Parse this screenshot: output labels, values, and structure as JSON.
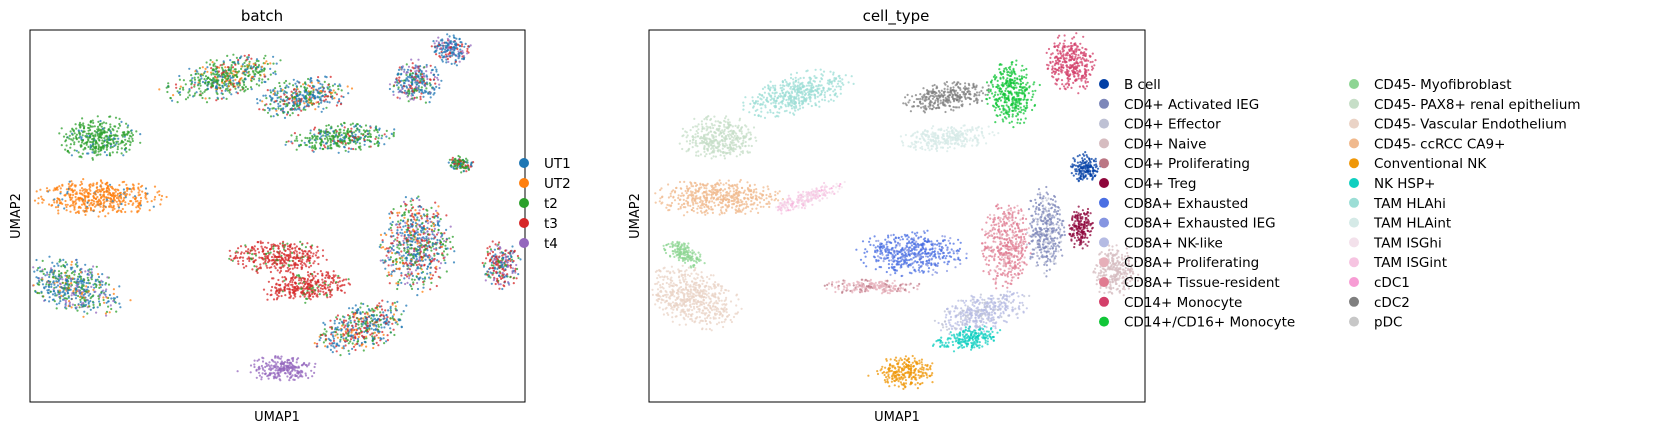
{
  "chart_data": [
    {
      "type": "scatter",
      "title": "batch",
      "xlabel": "UMAP1",
      "ylabel": "UMAP2",
      "grid": false,
      "ticks": false,
      "legend_position": "right",
      "legend": [
        {
          "label": "UT1",
          "color": "#1f77b4"
        },
        {
          "label": "UT2",
          "color": "#ff7f0e"
        },
        {
          "label": "t2",
          "color": "#2ca02c"
        },
        {
          "label": "t3",
          "color": "#d62728"
        },
        {
          "label": "t4",
          "color": "#9467bd"
        }
      ],
      "clusters": [
        {
          "name": "upper-arc",
          "x": 0.39,
          "y": 0.87,
          "rx": 0.12,
          "ry": 0.055,
          "rot": -14,
          "mix": [
            [
              "t2",
              5
            ],
            [
              "UT1",
              2
            ],
            [
              "UT2",
              1
            ],
            [
              "t3",
              1
            ]
          ]
        },
        {
          "name": "upper-mid",
          "x": 0.55,
          "y": 0.82,
          "rx": 0.1,
          "ry": 0.05,
          "rot": -10,
          "mix": [
            [
              "UT1",
              3
            ],
            [
              "t2",
              2
            ],
            [
              "UT2",
              1
            ],
            [
              "t3",
              1
            ]
          ]
        },
        {
          "name": "upper-right",
          "x": 0.78,
          "y": 0.86,
          "rx": 0.055,
          "ry": 0.06,
          "rot": 0,
          "mix": [
            [
              "UT1",
              3
            ],
            [
              "t2",
              1
            ],
            [
              "t3",
              1
            ],
            [
              "t4",
              1
            ]
          ]
        },
        {
          "name": "top-right-tip",
          "x": 0.85,
          "y": 0.95,
          "rx": 0.04,
          "ry": 0.045,
          "rot": 0,
          "mix": [
            [
              "UT1",
              3
            ],
            [
              "t4",
              1
            ],
            [
              "t3",
              1
            ]
          ]
        },
        {
          "name": "left-upper",
          "x": 0.14,
          "y": 0.71,
          "rx": 0.08,
          "ry": 0.06,
          "rot": 0,
          "mix": [
            [
              "t2",
              7
            ],
            [
              "UT1",
              1
            ]
          ]
        },
        {
          "name": "mid-band",
          "x": 0.63,
          "y": 0.71,
          "rx": 0.11,
          "ry": 0.04,
          "rot": -5,
          "mix": [
            [
              "t2",
              5
            ],
            [
              "UT1",
              2
            ],
            [
              "t3",
              1
            ]
          ]
        },
        {
          "name": "left-orange",
          "x": 0.14,
          "y": 0.55,
          "rx": 0.13,
          "ry": 0.05,
          "rot": 0,
          "mix": [
            [
              "UT2",
              9
            ],
            [
              "UT1",
              1
            ]
          ]
        },
        {
          "name": "left-lower",
          "x": 0.09,
          "y": 0.31,
          "rx": 0.1,
          "ry": 0.07,
          "rot": 20,
          "mix": [
            [
              "UT1",
              3
            ],
            [
              "t2",
              2
            ],
            [
              "UT2",
              1
            ],
            [
              "t4",
              1
            ]
          ]
        },
        {
          "name": "center-red",
          "x": 0.5,
          "y": 0.39,
          "rx": 0.1,
          "ry": 0.045,
          "rot": 0,
          "mix": [
            [
              "t3",
              9
            ],
            [
              "t2",
              1
            ]
          ]
        },
        {
          "name": "center-red-lower",
          "x": 0.56,
          "y": 0.31,
          "rx": 0.09,
          "ry": 0.045,
          "rot": -5,
          "mix": [
            [
              "t3",
              7
            ],
            [
              "t2",
              1
            ]
          ]
        },
        {
          "name": "right-mixed",
          "x": 0.78,
          "y": 0.42,
          "rx": 0.075,
          "ry": 0.13,
          "rot": 0,
          "mix": [
            [
              "UT1",
              3
            ],
            [
              "t2",
              2
            ],
            [
              "t3",
              2
            ],
            [
              "t4",
              1
            ],
            [
              "UT2",
              1
            ]
          ]
        },
        {
          "name": "far-right",
          "x": 0.95,
          "y": 0.37,
          "rx": 0.04,
          "ry": 0.065,
          "rot": 0,
          "mix": [
            [
              "t3",
              3
            ],
            [
              "t4",
              2
            ],
            [
              "UT1",
              2
            ],
            [
              "t2",
              1
            ]
          ]
        },
        {
          "name": "lower-right",
          "x": 0.67,
          "y": 0.2,
          "rx": 0.1,
          "ry": 0.06,
          "rot": -20,
          "mix": [
            [
              "UT1",
              3
            ],
            [
              "t2",
              2
            ],
            [
              "t3",
              2
            ],
            [
              "UT2",
              1
            ]
          ]
        },
        {
          "name": "bottom-purple",
          "x": 0.51,
          "y": 0.09,
          "rx": 0.07,
          "ry": 0.035,
          "rot": 0,
          "mix": [
            [
              "t4",
              9
            ]
          ]
        },
        {
          "name": "small-right",
          "x": 0.87,
          "y": 0.64,
          "rx": 0.025,
          "ry": 0.025,
          "rot": 0,
          "mix": [
            [
              "t2",
              3
            ],
            [
              "t3",
              1
            ],
            [
              "UT1",
              1
            ]
          ]
        }
      ]
    },
    {
      "type": "scatter",
      "title": "cell_type",
      "xlabel": "UMAP1",
      "ylabel": "UMAP2",
      "grid": false,
      "ticks": false,
      "legend_position": "right",
      "legend": [
        {
          "label": "B cell",
          "color": "#023fa5"
        },
        {
          "label": "CD4+ Activated IEG",
          "color": "#7d87b9"
        },
        {
          "label": "CD4+ Effector",
          "color": "#bec1d4"
        },
        {
          "label": "CD4+ Naive",
          "color": "#d6bcc0"
        },
        {
          "label": "CD4+ Proliferating",
          "color": "#bb7784"
        },
        {
          "label": "CD4+ Treg",
          "color": "#8e063b"
        },
        {
          "label": "CD8A+ Exhausted",
          "color": "#4a6fe3"
        },
        {
          "label": "CD8A+ Exhausted IEG",
          "color": "#8595e1"
        },
        {
          "label": "CD8A+ NK-like",
          "color": "#b5bbe3"
        },
        {
          "label": "CD8A+ Proliferating",
          "color": "#e6afb9"
        },
        {
          "label": "CD8A+ Tissue-resident",
          "color": "#e07b91"
        },
        {
          "label": "CD14+ Monocyte",
          "color": "#d33f6a"
        },
        {
          "label": "CD14+/CD16+ Monocyte",
          "color": "#11c638"
        },
        {
          "label": "CD45- Myofibroblast",
          "color": "#8dd593"
        },
        {
          "label": "CD45- PAX8+ renal epithelium",
          "color": "#c6dec7"
        },
        {
          "label": "CD45- Vascular Endothelium",
          "color": "#ead3c6"
        },
        {
          "label": "CD45- ccRCC CA9+",
          "color": "#f0b98d"
        },
        {
          "label": "Conventional NK",
          "color": "#ef9708"
        },
        {
          "label": "NK HSP+",
          "color": "#0fcfc0"
        },
        {
          "label": "TAM HLAhi",
          "color": "#9cded6"
        },
        {
          "label": "TAM HLAint",
          "color": "#d5eae7"
        },
        {
          "label": "TAM ISGhi",
          "color": "#f3e1eb"
        },
        {
          "label": "TAM ISGint",
          "color": "#f6c4e1"
        },
        {
          "label": "cDC1",
          "color": "#f79cd4"
        },
        {
          "label": "cDC2",
          "color": "#7f7f7f"
        },
        {
          "label": "pDC",
          "color": "#c7c7c7"
        }
      ],
      "clusters": [
        {
          "name": "tam-hlahi",
          "x": 0.3,
          "y": 0.83,
          "rx": 0.11,
          "ry": 0.055,
          "rot": -14,
          "mix": [
            [
              "TAM HLAhi",
              9
            ]
          ]
        },
        {
          "name": "cdc2",
          "x": 0.6,
          "y": 0.82,
          "rx": 0.09,
          "ry": 0.04,
          "rot": -10,
          "mix": [
            [
              "cDC2",
              9
            ]
          ]
        },
        {
          "name": "tam-hlaint",
          "x": 0.6,
          "y": 0.71,
          "rx": 0.1,
          "ry": 0.035,
          "rot": -5,
          "mix": [
            [
              "TAM HLAint",
              9
            ]
          ]
        },
        {
          "name": "cd14-16-mono",
          "x": 0.73,
          "y": 0.83,
          "rx": 0.05,
          "ry": 0.09,
          "rot": 0,
          "mix": [
            [
              "CD14+/CD16+ Monocyte",
              9
            ]
          ]
        },
        {
          "name": "cd14-mono",
          "x": 0.85,
          "y": 0.91,
          "rx": 0.05,
          "ry": 0.08,
          "rot": 0,
          "mix": [
            [
              "CD14+ Monocyte",
              9
            ]
          ]
        },
        {
          "name": "pax8",
          "x": 0.14,
          "y": 0.71,
          "rx": 0.08,
          "ry": 0.06,
          "rot": 0,
          "mix": [
            [
              "CD45- PAX8+ renal epithelium",
              9
            ]
          ]
        },
        {
          "name": "ccrcc",
          "x": 0.14,
          "y": 0.55,
          "rx": 0.13,
          "ry": 0.05,
          "rot": 0,
          "mix": [
            [
              "CD45- ccRCC CA9+",
              9
            ]
          ]
        },
        {
          "name": "vascular",
          "x": 0.09,
          "y": 0.28,
          "rx": 0.1,
          "ry": 0.08,
          "rot": 20,
          "mix": [
            [
              "CD45- Vascular Endothelium",
              9
            ]
          ]
        },
        {
          "name": "b-cell",
          "x": 0.88,
          "y": 0.63,
          "rx": 0.03,
          "ry": 0.04,
          "rot": 0,
          "mix": [
            [
              "B cell",
              9
            ]
          ]
        },
        {
          "name": "cd8-exhausted",
          "x": 0.53,
          "y": 0.4,
          "rx": 0.11,
          "ry": 0.06,
          "rot": 0,
          "mix": [
            [
              "CD8A+ Exhausted",
              8
            ],
            [
              "CD8A+ Exhausted IEG",
              2
            ]
          ]
        },
        {
          "name": "cd8-tissue-resident",
          "x": 0.72,
          "y": 0.42,
          "rx": 0.05,
          "ry": 0.12,
          "rot": 0,
          "mix": [
            [
              "CD8A+ Tissue-resident",
              7
            ],
            [
              "CD8A+ Proliferating",
              2
            ]
          ]
        },
        {
          "name": "cd4-activated",
          "x": 0.8,
          "y": 0.46,
          "rx": 0.04,
          "ry": 0.12,
          "rot": 0,
          "mix": [
            [
              "CD4+ Activated IEG",
              7
            ],
            [
              "CD4+ Effector",
              2
            ]
          ]
        },
        {
          "name": "cd4-treg",
          "x": 0.87,
          "y": 0.47,
          "rx": 0.025,
          "ry": 0.06,
          "rot": 0,
          "mix": [
            [
              "CD4+ Treg",
              9
            ]
          ]
        },
        {
          "name": "cd4-naive",
          "x": 0.94,
          "y": 0.35,
          "rx": 0.045,
          "ry": 0.07,
          "rot": 0,
          "mix": [
            [
              "CD4+ Naive",
              9
            ]
          ]
        },
        {
          "name": "cd8-nk-like",
          "x": 0.67,
          "y": 0.24,
          "rx": 0.1,
          "ry": 0.05,
          "rot": -15,
          "mix": [
            [
              "CD8A+ NK-like",
              8
            ],
            [
              "CD4+ Effector",
              2
            ]
          ]
        },
        {
          "name": "nk-hsp",
          "x": 0.64,
          "y": 0.17,
          "rx": 0.07,
          "ry": 0.03,
          "rot": -10,
          "mix": [
            [
              "NK HSP+",
              9
            ]
          ]
        },
        {
          "name": "conventional-nk",
          "x": 0.52,
          "y": 0.08,
          "rx": 0.06,
          "ry": 0.045,
          "rot": 0,
          "mix": [
            [
              "Conventional NK",
              9
            ]
          ]
        },
        {
          "name": "cd8-proliferating",
          "x": 0.45,
          "y": 0.31,
          "rx": 0.1,
          "ry": 0.02,
          "rot": 0,
          "mix": [
            [
              "CD8A+ Proliferating",
              6
            ],
            [
              "CD4+ Proliferating",
              2
            ]
          ]
        },
        {
          "name": "tam-isg",
          "x": 0.32,
          "y": 0.55,
          "rx": 0.08,
          "ry": 0.025,
          "rot": -20,
          "mix": [
            [
              "TAM ISGint",
              6
            ],
            [
              "TAM ISGhi",
              3
            ],
            [
              "cDC1",
              1
            ]
          ]
        },
        {
          "name": "myofibroblast",
          "x": 0.07,
          "y": 0.4,
          "rx": 0.045,
          "ry": 0.03,
          "rot": 30,
          "mix": [
            [
              "CD45- Myofibroblast",
              9
            ]
          ]
        }
      ]
    }
  ]
}
